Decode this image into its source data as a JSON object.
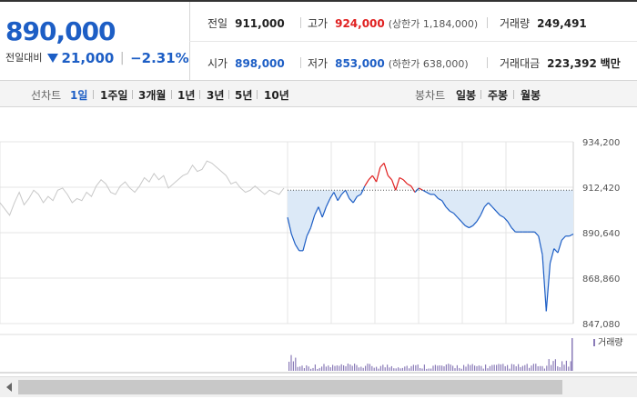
{
  "quote": {
    "price": "890,000",
    "change_label": "전일대비",
    "change_amount": "21,000",
    "change_percent": "−2.31%",
    "prev_close_label": "전일",
    "prev_close": "911,000",
    "high_label": "고가",
    "high": "924,000",
    "upper_limit": "(상한가 1,184,000)",
    "volume_label": "거래량",
    "volume": "249,491",
    "open_label": "시가",
    "open": "898,000",
    "low_label": "저가",
    "low": "853,000",
    "lower_limit": "(하한가 638,000)",
    "amount_label": "거래대금",
    "amount": "223,392",
    "amount_unit": "백만"
  },
  "periods": {
    "line_label": "선차트",
    "line_options": [
      "1일",
      "1주일",
      "3개월",
      "1년",
      "3년",
      "5년",
      "10년"
    ],
    "active": "1일",
    "candle_label": "봉차트",
    "candle_options": [
      "일봉",
      "주봉",
      "월봉"
    ]
  },
  "colors": {
    "up": "#e02020",
    "down": "#1d5ec5",
    "neutral": "#c8c8c8",
    "fill": "#dce9f7",
    "volume": "#8a7bb8"
  },
  "chart_data": {
    "type": "line",
    "y_tick_labels": [
      "934,200",
      "912,420",
      "890,640",
      "868,860",
      "847,080"
    ],
    "ylim": [
      847080,
      934200
    ],
    "reference_line": 911000,
    "volume_legend": "거래량",
    "series": [
      {
        "values": [
          905000,
          902000,
          899000,
          905000,
          910000,
          904000,
          907000,
          911000,
          909000,
          905000,
          908000,
          906000,
          911000,
          912000,
          909000,
          905000,
          907000,
          906000,
          910000,
          908000,
          913000,
          916000,
          914000,
          910000,
          909000,
          913000,
          915000,
          912000,
          910000,
          913000,
          917000,
          915000,
          919000,
          916000,
          918000,
          912000,
          914000,
          916000,
          918000,
          919000,
          923000,
          920000,
          921000,
          925000,
          924000,
          922000,
          920000,
          918000,
          914000,
          915000,
          912000,
          910000,
          911000,
          913000,
          911000,
          909000,
          911000,
          910000,
          909000,
          912000
        ]
      },
      {
        "values": [
          898000,
          890000,
          885000,
          882000,
          882000,
          889000,
          893000,
          899000,
          903000,
          898000,
          903000,
          907000,
          910000,
          906000,
          909000,
          911000,
          907000,
          905000,
          908000,
          909000,
          913000,
          916000,
          918000,
          915000,
          922000,
          924000,
          918000,
          916000,
          911000,
          917000,
          916000,
          914000,
          913000,
          910000,
          912000,
          911000,
          910000,
          909000,
          909000,
          907000,
          906000,
          903000,
          901000,
          900000,
          898000,
          896000,
          894000,
          893000,
          894000,
          896000,
          899000,
          903000,
          905000,
          903000,
          901000,
          899000,
          898000,
          896000,
          893000,
          891000,
          891000,
          891000,
          891000,
          891000,
          891000,
          889000,
          880000,
          853000,
          876000,
          883000,
          881000,
          887000,
          889000,
          889000,
          890000
        ]
      }
    ]
  }
}
